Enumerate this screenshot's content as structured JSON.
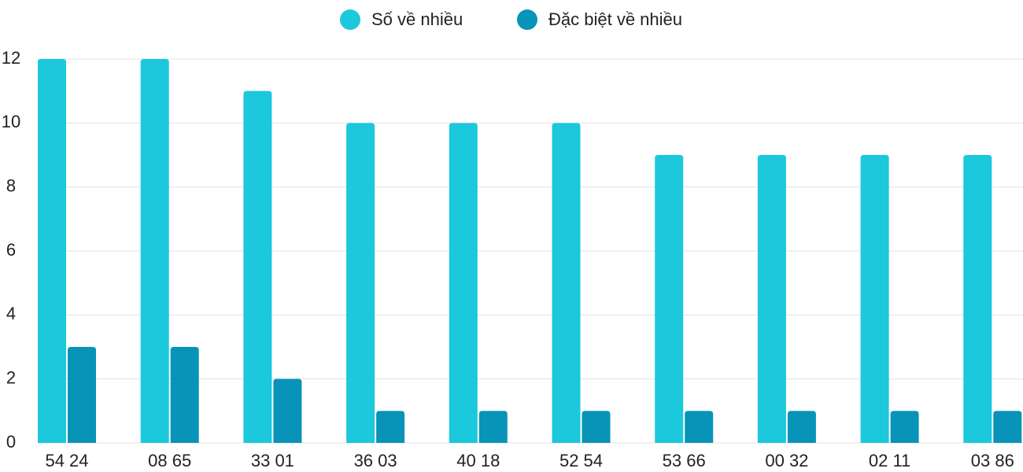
{
  "chart_data": {
    "type": "bar",
    "categories": [
      "54 24",
      "08 65",
      "33 01",
      "36 03",
      "40 18",
      "52 54",
      "53 66",
      "00 32",
      "02 11",
      "03 86"
    ],
    "series": [
      {
        "name": "Số về nhiều",
        "color": "#1bc8dc",
        "values": [
          12,
          12,
          11,
          10,
          10,
          10,
          9,
          9,
          9,
          9
        ]
      },
      {
        "name": "Đặc biệt về nhiều",
        "color": "#0794b8",
        "values": [
          3,
          3,
          2,
          1,
          1,
          1,
          1,
          1,
          1,
          1
        ]
      }
    ],
    "ylim": [
      0,
      12
    ],
    "yticks": [
      0,
      2,
      4,
      6,
      8,
      10,
      12
    ],
    "grid": true,
    "legend": "top"
  }
}
